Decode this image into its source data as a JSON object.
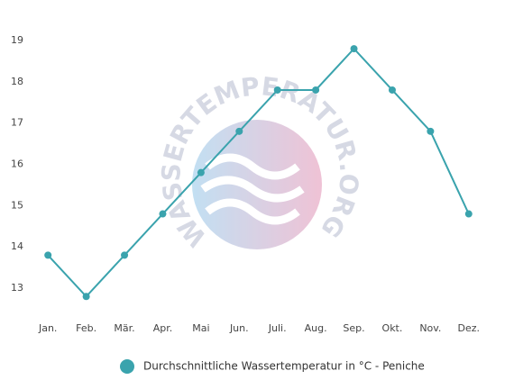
{
  "chart_data": {
    "type": "line",
    "watermark": "WASSERTEMPERATUR.ORG",
    "categories": [
      "Jan.",
      "Feb.",
      "Mär.",
      "Apr.",
      "Mai",
      "Jun.",
      "Juli.",
      "Aug.",
      "Sep.",
      "Okt.",
      "Nov.",
      "Dez."
    ],
    "series": [
      {
        "name": "Durchschnittliche Wassertemperatur in °C - Peniche",
        "color": "#3aa3ad",
        "values": [
          13.8,
          12.8,
          13.8,
          14.8,
          15.8,
          16.8,
          17.8,
          17.8,
          18.8,
          17.8,
          16.8,
          14.8
        ]
      }
    ],
    "ylim": [
      12.5,
      19.5
    ],
    "yticks": [
      13,
      14,
      15,
      16,
      17,
      18,
      19
    ],
    "grid": false
  }
}
